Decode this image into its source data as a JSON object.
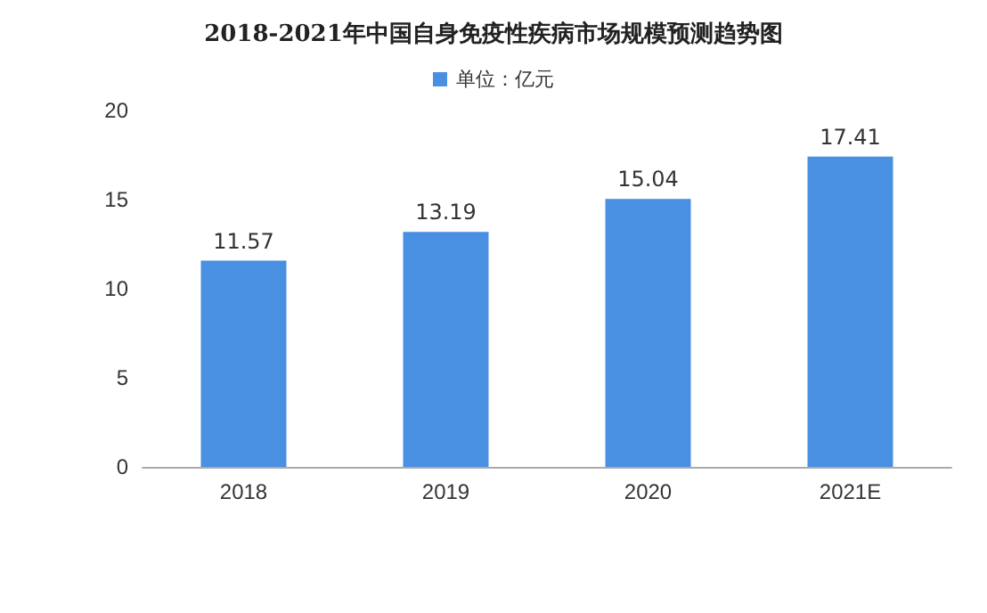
{
  "chart_data": {
    "type": "bar",
    "title": "2018-2021年中国自身免疫性疾病市场规模预测趋势图",
    "categories": [
      "2018",
      "2019",
      "2020",
      "2021E"
    ],
    "series": [
      {
        "name": "单位：亿元",
        "color": "#4a90e2",
        "values": [
          11.57,
          13.19,
          15.04,
          17.41
        ]
      }
    ],
    "ylim": [
      0,
      20
    ],
    "yticks": [
      0,
      5,
      10,
      15,
      20
    ],
    "grid": false,
    "legend": "top",
    "data_labels": true
  }
}
